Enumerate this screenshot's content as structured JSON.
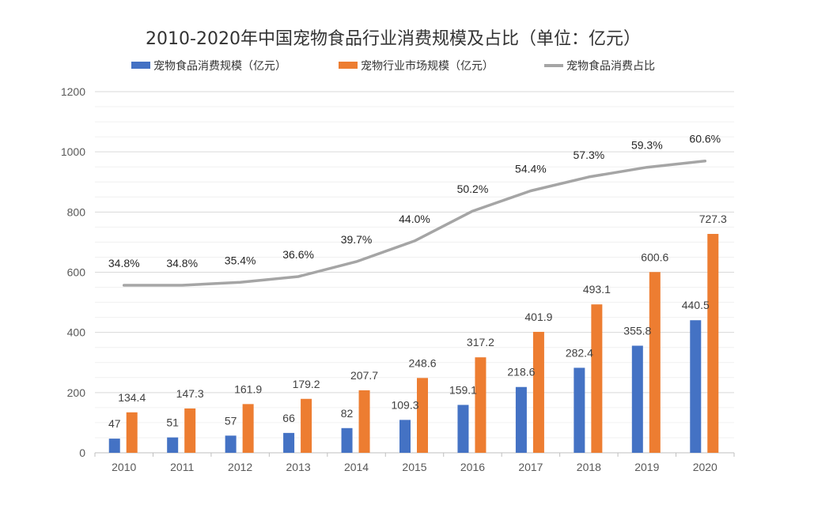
{
  "chart_data": {
    "type": "bar",
    "title": "2010-2020年中国宠物食品行业消费规模及占比（单位：亿元）",
    "categories": [
      "2010",
      "2011",
      "2012",
      "2013",
      "2014",
      "2015",
      "2016",
      "2017",
      "2018",
      "2019",
      "2020"
    ],
    "series": [
      {
        "name": "宠物食品消费规模（亿元）",
        "type": "bar",
        "color": "#4472C4",
        "values": [
          47,
          51,
          57,
          66,
          82,
          109.3,
          159.1,
          218.6,
          282.4,
          355.8,
          440.5
        ],
        "labels": [
          "47",
          "51",
          "57",
          "66",
          "82",
          "109.3",
          "159.1",
          "218.6",
          "282.4",
          "355.8",
          "440.5"
        ]
      },
      {
        "name": "宠物行业市场规模（亿元）",
        "type": "bar",
        "color": "#ED7D31",
        "values": [
          134.4,
          147.3,
          161.9,
          179.2,
          207.7,
          248.6,
          317.2,
          401.9,
          493.1,
          600.6,
          727.3
        ],
        "labels": [
          "134.4",
          "147.3",
          "161.9",
          "179.2",
          "207.7",
          "248.6",
          "317.2",
          "401.9",
          "493.1",
          "600.6",
          "727.3"
        ]
      },
      {
        "name": "宠物食品消费占比",
        "type": "line",
        "color": "#A5A5A5",
        "values": [
          34.8,
          34.8,
          35.4,
          36.6,
          39.7,
          44.0,
          50.2,
          54.4,
          57.3,
          59.3,
          60.6
        ],
        "labels": [
          "34.8%",
          "34.8%",
          "35.4%",
          "36.6%",
          "39.7%",
          "44.0%",
          "50.2%",
          "54.4%",
          "57.3%",
          "59.3%",
          "60.6%"
        ]
      }
    ],
    "yticks": [
      "0",
      "200",
      "400",
      "600",
      "800",
      "1000",
      "1200"
    ],
    "ylim": [
      0,
      1200
    ],
    "line_display_scale": 16,
    "grid": true,
    "legend": "top"
  }
}
